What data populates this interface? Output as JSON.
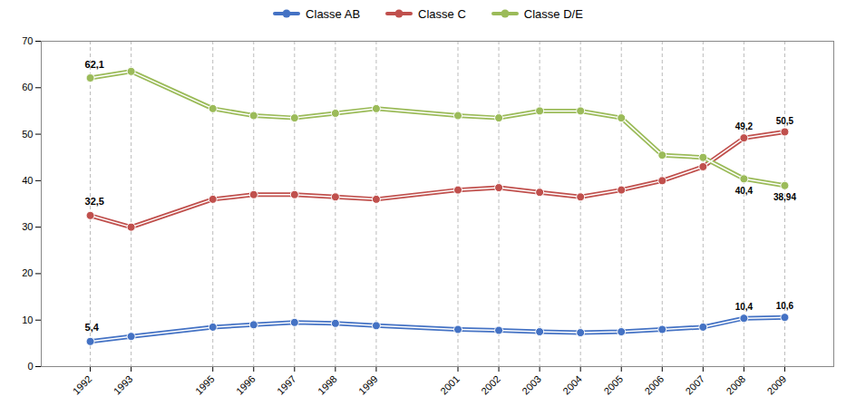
{
  "chart_data": {
    "type": "line",
    "x": [
      1992,
      1993,
      1995,
      1996,
      1997,
      1998,
      1999,
      2001,
      2002,
      2003,
      2004,
      2005,
      2006,
      2007,
      2008,
      2009
    ],
    "series": [
      {
        "name": "Classe AB",
        "color": "#4472C4",
        "values": [
          5.4,
          6.5,
          8.5,
          9.0,
          9.5,
          9.3,
          8.8,
          8.0,
          7.8,
          7.5,
          7.3,
          7.5,
          8.0,
          8.5,
          10.4,
          10.6
        ],
        "value_labels": [
          "5,4",
          null,
          null,
          null,
          null,
          null,
          null,
          null,
          null,
          null,
          null,
          null,
          null,
          null,
          "10,4",
          "10,6"
        ]
      },
      {
        "name": "Classe C",
        "color": "#C0504D",
        "values": [
          32.5,
          30.0,
          36.0,
          37.0,
          37.0,
          36.5,
          36.0,
          38.0,
          38.5,
          37.5,
          36.5,
          38.0,
          40.0,
          43.0,
          49.2,
          50.5
        ],
        "value_labels": [
          "32,5",
          null,
          null,
          null,
          null,
          null,
          null,
          null,
          null,
          null,
          null,
          null,
          null,
          null,
          "49,2",
          "50,5"
        ]
      },
      {
        "name": "Classe D/E",
        "color": "#9BBB59",
        "values": [
          62.1,
          63.5,
          55.5,
          54.0,
          53.5,
          54.5,
          55.5,
          54.0,
          53.5,
          55.0,
          55.0,
          53.5,
          45.5,
          45.0,
          40.4,
          38.94
        ],
        "value_labels": [
          "62,1",
          null,
          null,
          null,
          null,
          null,
          null,
          null,
          null,
          null,
          null,
          null,
          null,
          null,
          "40,4",
          "38,94"
        ]
      }
    ],
    "xlim": [
      1990.8,
      2010.2
    ],
    "xticks": [
      1992,
      1993,
      1995,
      1996,
      1997,
      1998,
      1999,
      2001,
      2002,
      2003,
      2004,
      2005,
      2006,
      2007,
      2008,
      2009
    ],
    "ylim": [
      0,
      70
    ],
    "yticks": [
      0,
      10,
      20,
      30,
      40,
      50,
      60,
      70
    ],
    "grid": "x",
    "legend": "top",
    "marker": "circle",
    "data_labels": true
  }
}
